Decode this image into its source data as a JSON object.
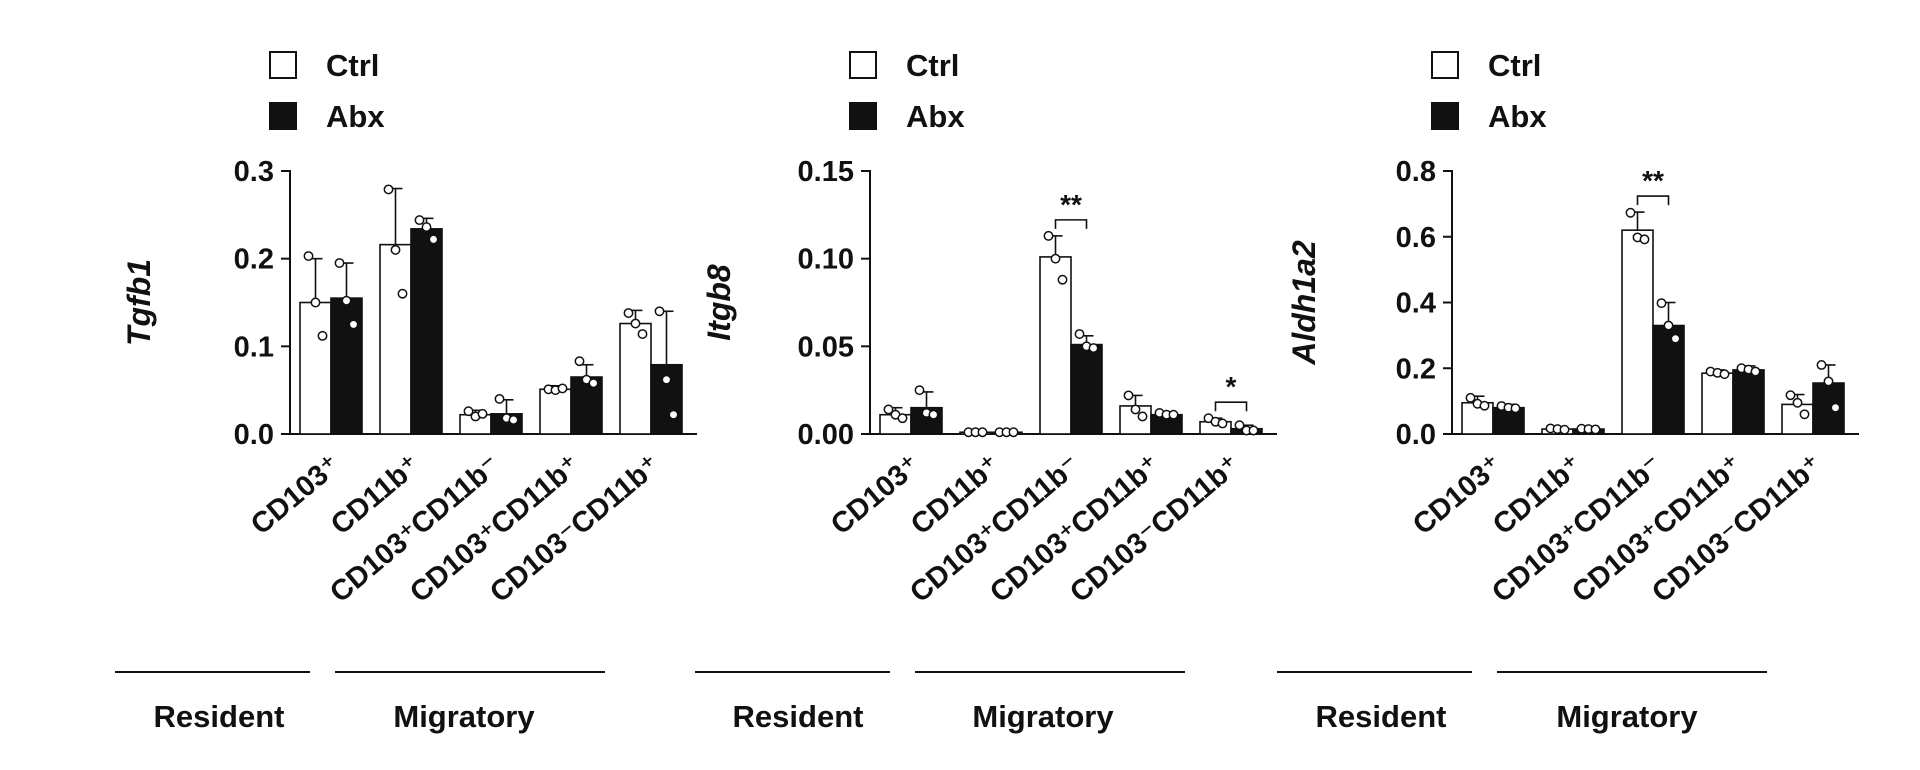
{
  "legend": [
    {
      "label": "Ctrl",
      "color": "#ffffff"
    },
    {
      "label": "Abx",
      "color": "#111111"
    }
  ],
  "groups": [
    {
      "label": "Resident"
    },
    {
      "label": "Migratory"
    }
  ],
  "chart_data": [
    {
      "type": "bar",
      "ylabel": "Tgfb1",
      "ylim": [
        0,
        0.3
      ],
      "yticks": [
        "0.0",
        "0.1",
        "0.2",
        "0.3"
      ],
      "tick_values": [
        0,
        0.1,
        0.2,
        0.3
      ],
      "categories": [
        "CD103⁺",
        "CD11b⁺",
        "CD103⁺CD11b⁻",
        "CD103⁺CD11b⁺",
        "CD103⁻CD11b⁺"
      ],
      "series": [
        {
          "name": "Ctrl",
          "values": [
            0.15,
            0.216,
            0.022,
            0.051,
            0.126
          ],
          "errors": [
            0.05,
            0.064,
            0.005,
            0.004,
            0.015
          ],
          "points": [
            [
              0.203,
              0.15,
              0.112
            ],
            [
              0.279,
              0.21,
              0.16
            ],
            [
              0.026,
              0.02,
              0.023
            ],
            [
              0.051,
              0.05,
              0.052
            ],
            [
              0.138,
              0.126,
              0.114
            ]
          ]
        },
        {
          "name": "Abx",
          "values": [
            0.155,
            0.234,
            0.023,
            0.065,
            0.079
          ],
          "errors": [
            0.04,
            0.012,
            0.016,
            0.014,
            0.061
          ],
          "points": [
            [
              0.195,
              0.152,
              0.125
            ],
            [
              0.244,
              0.236,
              0.222
            ],
            [
              0.04,
              0.018,
              0.016
            ],
            [
              0.083,
              0.062,
              0.058
            ],
            [
              0.14,
              0.062,
              0.022
            ]
          ]
        }
      ],
      "significance": []
    },
    {
      "type": "bar",
      "ylabel": "Itgb8",
      "ylim": [
        0,
        0.15
      ],
      "yticks": [
        "0.00",
        "0.05",
        "0.10",
        "0.15"
      ],
      "tick_values": [
        0,
        0.05,
        0.1,
        0.15
      ],
      "categories": [
        "CD103⁺",
        "CD11b⁺",
        "CD103⁺CD11b⁻",
        "CD103⁺CD11b⁺",
        "CD103⁻CD11b⁺"
      ],
      "series": [
        {
          "name": "Ctrl",
          "values": [
            0.011,
            0.001,
            0.101,
            0.016,
            0.007
          ],
          "errors": [
            0.004,
            0.0005,
            0.012,
            0.006,
            0.002
          ],
          "points": [
            [
              0.014,
              0.011,
              0.009
            ],
            [
              0.001,
              0.001,
              0.001
            ],
            [
              0.113,
              0.1,
              0.088
            ],
            [
              0.022,
              0.014,
              0.01
            ],
            [
              0.009,
              0.007,
              0.006
            ]
          ]
        },
        {
          "name": "Abx",
          "values": [
            0.015,
            0.001,
            0.051,
            0.011,
            0.003
          ],
          "errors": [
            0.009,
            0.0005,
            0.005,
            0.001,
            0.002
          ],
          "points": [
            [
              0.025,
              0.012,
              0.011
            ],
            [
              0.001,
              0.001,
              0.001
            ],
            [
              0.057,
              0.05,
              0.049
            ],
            [
              0.012,
              0.011,
              0.011
            ],
            [
              0.005,
              0.002,
              0.002
            ]
          ]
        }
      ],
      "significance": [
        {
          "label": "**",
          "category": 2
        },
        {
          "label": "*",
          "category": 4
        }
      ]
    },
    {
      "type": "bar",
      "ylabel": "Aldh1a2",
      "ylim": [
        0,
        0.8
      ],
      "yticks": [
        "0.0",
        "0.2",
        "0.4",
        "0.6",
        "0.8"
      ],
      "tick_values": [
        0,
        0.2,
        0.4,
        0.6,
        0.8
      ],
      "categories": [
        "CD103⁺",
        "CD11b⁺",
        "CD103⁺CD11b⁻",
        "CD103⁺CD11b⁺",
        "CD103⁻CD11b⁺"
      ],
      "series": [
        {
          "name": "Ctrl",
          "values": [
            0.095,
            0.015,
            0.62,
            0.185,
            0.09
          ],
          "errors": [
            0.02,
            0.005,
            0.055,
            0.01,
            0.03
          ],
          "points": [
            [
              0.11,
              0.092,
              0.086
            ],
            [
              0.017,
              0.015,
              0.013
            ],
            [
              0.673,
              0.598,
              0.592
            ],
            [
              0.19,
              0.186,
              0.182
            ],
            [
              0.118,
              0.095,
              0.06
            ]
          ]
        },
        {
          "name": "Abx",
          "values": [
            0.08,
            0.015,
            0.33,
            0.195,
            0.155
          ],
          "errors": [
            0.01,
            0.004,
            0.07,
            0.012,
            0.055
          ],
          "points": [
            [
              0.085,
              0.08,
              0.078
            ],
            [
              0.016,
              0.015,
              0.014
            ],
            [
              0.398,
              0.33,
              0.29
            ],
            [
              0.2,
              0.196,
              0.19
            ],
            [
              0.21,
              0.16,
              0.08
            ]
          ]
        }
      ],
      "significance": [
        {
          "label": "**",
          "category": 2
        }
      ]
    }
  ]
}
